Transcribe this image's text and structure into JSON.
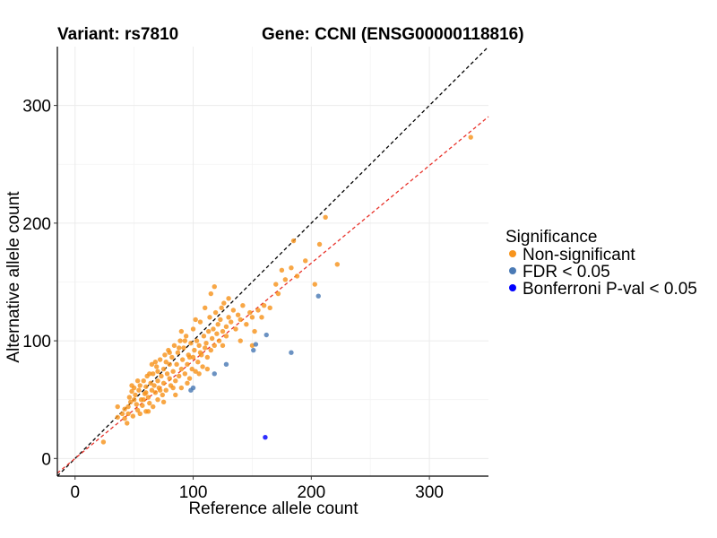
{
  "chart_data": {
    "type": "scatter",
    "title": "Variant: rs7810",
    "subtitle": "Gene: CCNI (ENSG00000118816)",
    "xlabel": "Reference allele count",
    "ylabel": "Alternative allele count",
    "xlim": [
      -15,
      350
    ],
    "ylim": [
      -15,
      350
    ],
    "x_ticks": [
      0,
      100,
      200,
      300
    ],
    "y_ticks": [
      0,
      100,
      200,
      300
    ],
    "grid": true,
    "legend": {
      "title": "Significance",
      "position": "right",
      "entries": [
        {
          "label": "Non-significant",
          "color": "#f7941d"
        },
        {
          "label": "FDR < 0.05",
          "color": "#4a7ab5"
        },
        {
          "label": "Bonferroni P-val < 0.05",
          "color": "#0000ff"
        }
      ]
    },
    "reference_lines": [
      {
        "name": "identity",
        "slope": 1.0,
        "intercept": 0,
        "color": "#000000",
        "style": "dashed"
      },
      {
        "name": "fit",
        "slope": 0.83,
        "intercept": 0,
        "color": "#e8322a",
        "style": "dashed"
      }
    ],
    "series": [
      {
        "name": "Non-significant",
        "color": "#f7941d",
        "points": [
          [
            24,
            14
          ],
          [
            36,
            35
          ],
          [
            40,
            38
          ],
          [
            42,
            42
          ],
          [
            44,
            30
          ],
          [
            45,
            44
          ],
          [
            46,
            52
          ],
          [
            47,
            48
          ],
          [
            48,
            57
          ],
          [
            49,
            36
          ],
          [
            50,
            60
          ],
          [
            51,
            54
          ],
          [
            52,
            46
          ],
          [
            53,
            41
          ],
          [
            54,
            58
          ],
          [
            55,
            62
          ],
          [
            56,
            50
          ],
          [
            57,
            45
          ],
          [
            58,
            66
          ],
          [
            59,
            55
          ],
          [
            60,
            61
          ],
          [
            60,
            40
          ],
          [
            61,
            70
          ],
          [
            62,
            52
          ],
          [
            63,
            47
          ],
          [
            64,
            64
          ],
          [
            65,
            58
          ],
          [
            66,
            72
          ],
          [
            66,
            44
          ],
          [
            67,
            62
          ],
          [
            68,
            56
          ],
          [
            69,
            78
          ],
          [
            70,
            66
          ],
          [
            70,
            50
          ],
          [
            71,
            60
          ],
          [
            72,
            84
          ],
          [
            73,
            70
          ],
          [
            74,
            54
          ],
          [
            75,
            76
          ],
          [
            75,
            64
          ],
          [
            76,
            88
          ],
          [
            77,
            58
          ],
          [
            78,
            72
          ],
          [
            79,
            92
          ],
          [
            80,
            68
          ],
          [
            80,
            80
          ],
          [
            81,
            62
          ],
          [
            82,
            86
          ],
          [
            83,
            74
          ],
          [
            84,
            96
          ],
          [
            85,
            66
          ],
          [
            86,
            80
          ],
          [
            87,
            90
          ],
          [
            88,
            70
          ],
          [
            89,
            100
          ],
          [
            90,
            76
          ],
          [
            90,
            60
          ],
          [
            91,
            84
          ],
          [
            92,
            94
          ],
          [
            93,
            72
          ],
          [
            94,
            104
          ],
          [
            95,
            80
          ],
          [
            96,
            88
          ],
          [
            97,
            68
          ],
          [
            98,
            98
          ],
          [
            99,
            76
          ],
          [
            100,
            86
          ],
          [
            100,
            110
          ],
          [
            101,
            92
          ],
          [
            102,
            74
          ],
          [
            103,
            100
          ],
          [
            104,
            82
          ],
          [
            105,
            96
          ],
          [
            106,
            116
          ],
          [
            107,
            88
          ],
          [
            108,
            78
          ],
          [
            109,
            104
          ],
          [
            110,
            94
          ],
          [
            111,
            98
          ],
          [
            112,
            86
          ],
          [
            113,
            108
          ],
          [
            114,
            120
          ],
          [
            115,
            92
          ],
          [
            116,
            102
          ],
          [
            117,
            110
          ],
          [
            118,
            96
          ],
          [
            119,
            124
          ],
          [
            120,
            106
          ],
          [
            121,
            114
          ],
          [
            122,
            100
          ],
          [
            123,
            118
          ],
          [
            124,
            128
          ],
          [
            125,
            108
          ],
          [
            126,
            132
          ],
          [
            128,
            112
          ],
          [
            130,
            120
          ],
          [
            132,
            116
          ],
          [
            134,
            126
          ],
          [
            136,
            110
          ],
          [
            138,
            122
          ],
          [
            140,
            118
          ],
          [
            142,
            130
          ],
          [
            145,
            114
          ],
          [
            148,
            124
          ],
          [
            150,
            120
          ],
          [
            152,
            108
          ],
          [
            155,
            126
          ],
          [
            158,
            120
          ],
          [
            160,
            130
          ],
          [
            165,
            128
          ],
          [
            170,
            148
          ],
          [
            172,
            140
          ],
          [
            175,
            160
          ],
          [
            178,
            152
          ],
          [
            183,
            162
          ],
          [
            185,
            185
          ],
          [
            188,
            155
          ],
          [
            195,
            168
          ],
          [
            203,
            148
          ],
          [
            207,
            182
          ],
          [
            212,
            205
          ],
          [
            222,
            165
          ],
          [
            335,
            273
          ],
          [
            36,
            44
          ],
          [
            42,
            34
          ],
          [
            48,
            62
          ],
          [
            53,
            66
          ],
          [
            58,
            50
          ],
          [
            63,
            72
          ],
          [
            68,
            82
          ],
          [
            72,
            58
          ],
          [
            77,
            82
          ],
          [
            83,
            60
          ],
          [
            88,
            94
          ],
          [
            93,
            100
          ],
          [
            97,
            86
          ],
          [
            102,
            118
          ],
          [
            106,
            90
          ],
          [
            110,
            128
          ],
          [
            115,
            140
          ],
          [
            118,
            146
          ],
          [
            130,
            136
          ],
          [
            128,
            104
          ],
          [
            62,
            40
          ],
          [
            55,
            38
          ],
          [
            65,
            80
          ],
          [
            80,
            90
          ],
          [
            90,
            108
          ],
          [
            95,
            64
          ],
          [
            105,
            72
          ],
          [
            112,
            76
          ],
          [
            85,
            54
          ],
          [
            75,
            48
          ],
          [
            70,
            74
          ],
          [
            60,
            56
          ],
          [
            50,
            50
          ],
          [
            45,
            38
          ],
          [
            140,
            100
          ],
          [
            150,
            96
          ],
          [
            125,
            96
          ]
        ]
      },
      {
        "name": "FDR < 0.05",
        "color": "#4a7ab5",
        "points": [
          [
            98,
            58
          ],
          [
            100,
            60
          ],
          [
            118,
            72
          ],
          [
            128,
            80
          ],
          [
            151,
            92
          ],
          [
            153,
            97
          ],
          [
            162,
            105
          ],
          [
            183,
            90
          ],
          [
            206,
            138
          ]
        ]
      },
      {
        "name": "Bonferroni P-val < 0.05",
        "color": "#0000ff",
        "points": [
          [
            161,
            18
          ]
        ]
      }
    ]
  }
}
